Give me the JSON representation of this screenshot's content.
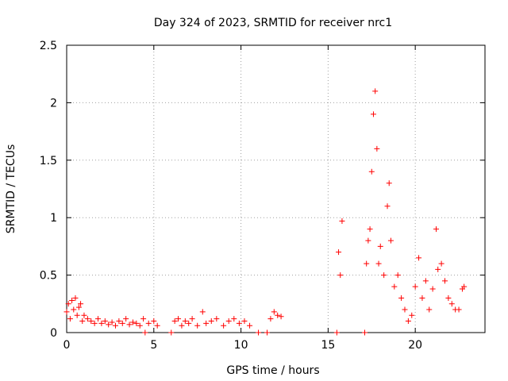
{
  "chart_data": {
    "type": "scatter",
    "title": "Day 324 of 2023, SRMTID for receiver nrc1",
    "xlabel": "GPS time / hours",
    "ylabel": "SRMTID / TECUs",
    "xlim": [
      0,
      24
    ],
    "ylim": [
      0,
      2.5
    ],
    "xticks": [
      0,
      5,
      10,
      15,
      20
    ],
    "xtick_labels": [
      "0",
      "5",
      "10",
      "15",
      "20"
    ],
    "yticks": [
      0,
      0.5,
      1,
      1.5,
      2,
      2.5
    ],
    "ytick_labels": [
      "0",
      "0.5",
      "1",
      "1.5",
      "2",
      "2.5"
    ],
    "grid": true,
    "marker": "+",
    "series": [
      {
        "name": "nrc1",
        "color": "#ff0000",
        "x": [
          0.0,
          0.1,
          0.2,
          0.3,
          0.4,
          0.5,
          0.6,
          0.7,
          0.8,
          0.9,
          1.0,
          1.2,
          1.4,
          1.6,
          1.8,
          2.0,
          2.2,
          2.4,
          2.6,
          2.8,
          3.0,
          3.2,
          3.4,
          3.6,
          3.8,
          4.0,
          4.2,
          4.4,
          4.5,
          4.7,
          5.0,
          5.2,
          6.0,
          6.2,
          6.4,
          6.6,
          6.8,
          7.0,
          7.2,
          7.5,
          7.8,
          8.0,
          8.3,
          8.6,
          9.0,
          9.3,
          9.6,
          9.9,
          10.2,
          10.5,
          11.0,
          11.5,
          11.7,
          11.9,
          12.1,
          12.3,
          15.5,
          15.6,
          15.7,
          15.8,
          17.1,
          17.2,
          17.3,
          17.4,
          17.5,
          17.6,
          17.7,
          17.8,
          17.9,
          18.0,
          18.2,
          18.4,
          18.5,
          18.6,
          18.8,
          19.0,
          19.2,
          19.4,
          19.6,
          19.8,
          20.0,
          20.2,
          20.4,
          20.6,
          20.8,
          21.0,
          21.2,
          21.3,
          21.5,
          21.7,
          21.9,
          22.1,
          22.3,
          22.5,
          22.7,
          22.8
        ],
        "y": [
          0.18,
          0.25,
          0.12,
          0.28,
          0.2,
          0.3,
          0.15,
          0.22,
          0.25,
          0.1,
          0.15,
          0.12,
          0.1,
          0.08,
          0.12,
          0.08,
          0.1,
          0.07,
          0.09,
          0.06,
          0.1,
          0.08,
          0.12,
          0.07,
          0.09,
          0.08,
          0.06,
          0.12,
          0.0,
          0.08,
          0.1,
          0.06,
          0.0,
          0.1,
          0.12,
          0.06,
          0.1,
          0.08,
          0.12,
          0.06,
          0.18,
          0.08,
          0.1,
          0.12,
          0.06,
          0.1,
          0.12,
          0.08,
          0.1,
          0.06,
          0.0,
          0.0,
          0.12,
          0.18,
          0.15,
          0.14,
          0.0,
          0.7,
          0.5,
          0.97,
          0.0,
          0.6,
          0.8,
          0.9,
          1.4,
          1.9,
          2.1,
          1.6,
          0.6,
          0.75,
          0.5,
          1.1,
          1.3,
          0.8,
          0.4,
          0.5,
          0.3,
          0.2,
          0.1,
          0.15,
          0.4,
          0.65,
          0.3,
          0.45,
          0.2,
          0.38,
          0.9,
          0.55,
          0.6,
          0.45,
          0.3,
          0.25,
          0.2,
          0.2,
          0.38,
          0.4
        ]
      }
    ]
  }
}
